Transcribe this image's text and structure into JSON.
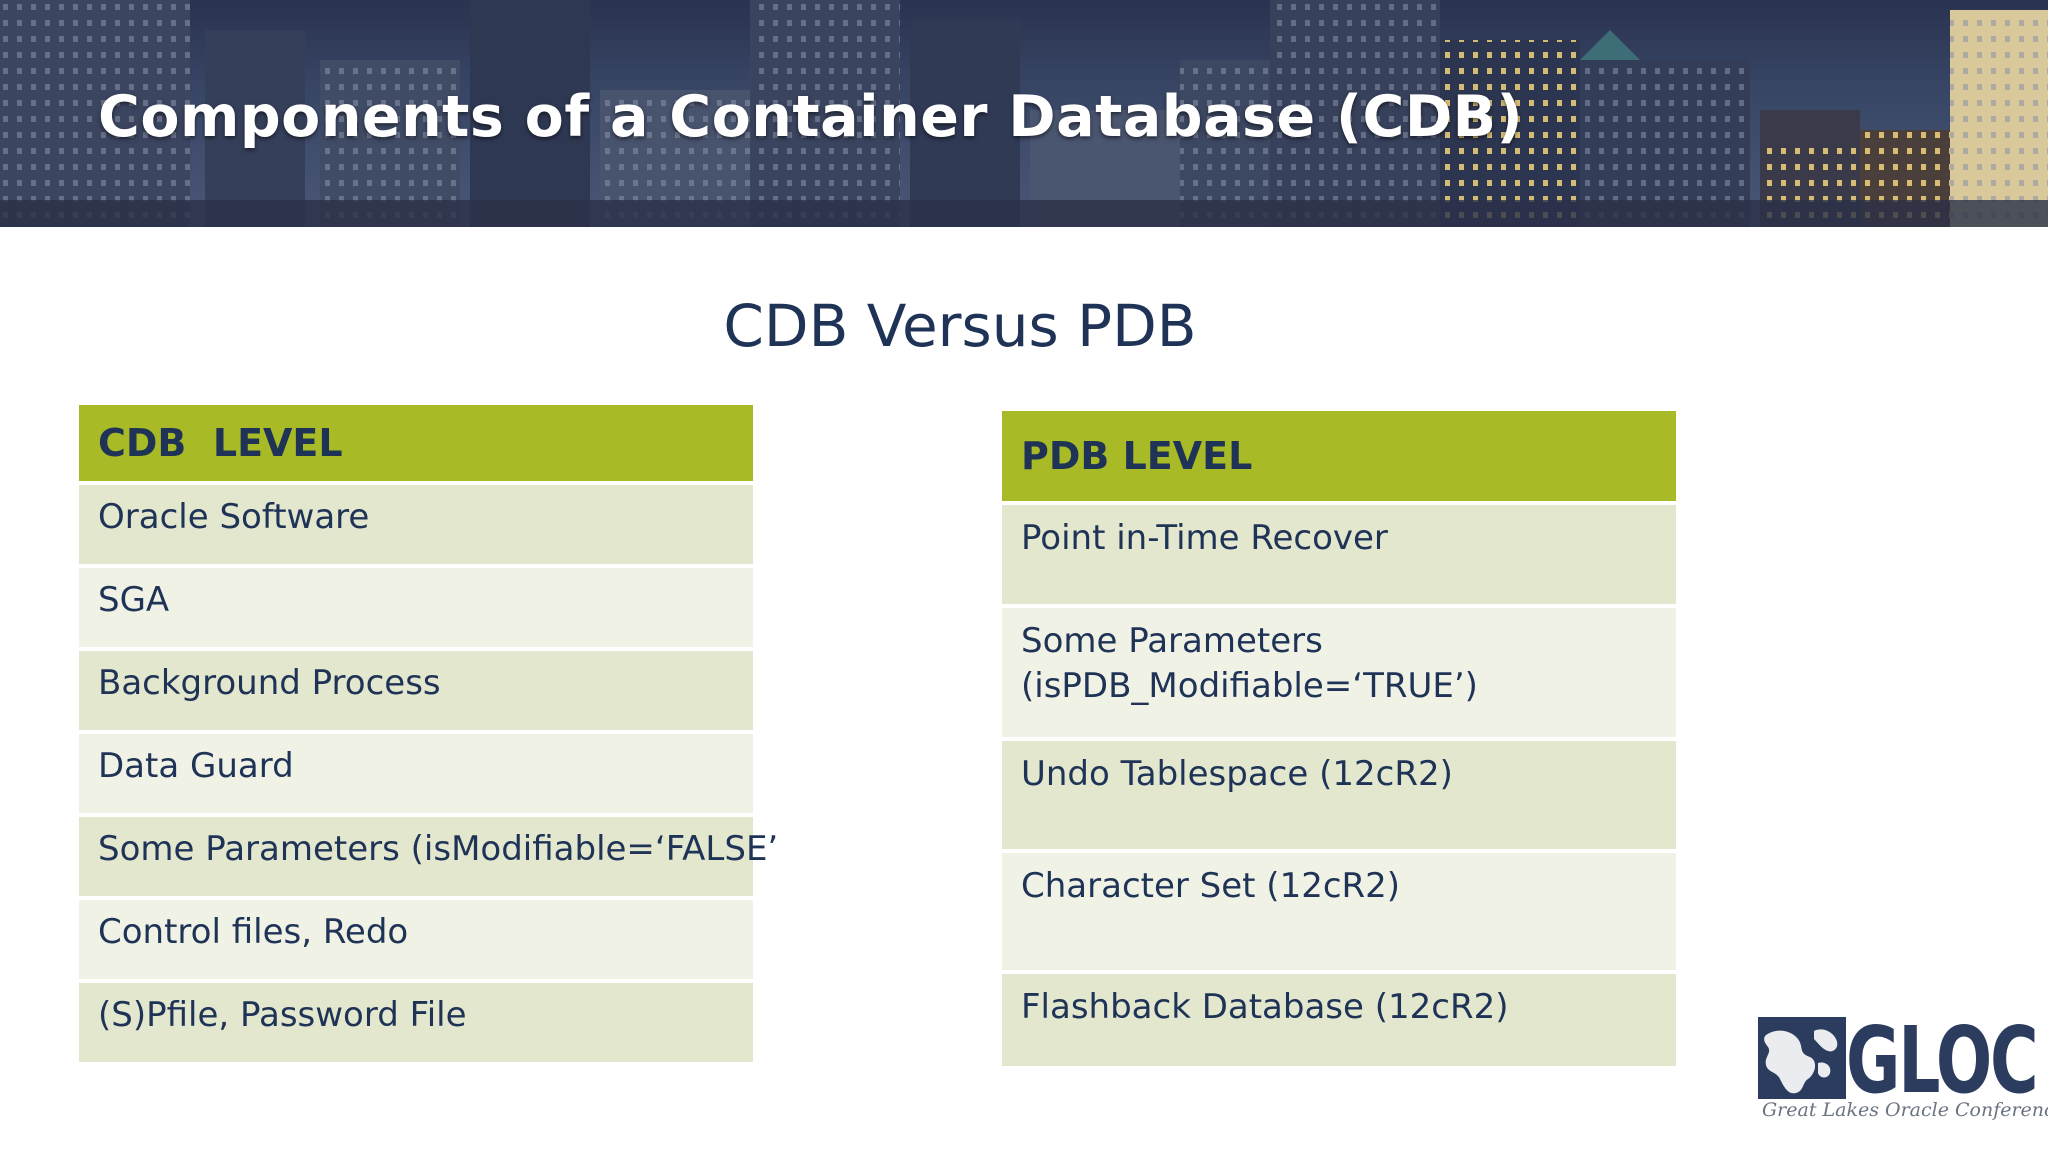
{
  "banner": {
    "title": "Components of a Container Database (CDB)"
  },
  "subtitle": "CDB Versus PDB",
  "colors": {
    "header_green": "#a8bb26",
    "row_dark": "#e2e7ce",
    "row_light": "#f0f2e6",
    "text_navy": "#1f3356"
  },
  "cdb_table": {
    "header": "CDB  LEVEL",
    "rows": [
      "Oracle Software",
      "SGA",
      "Background Process",
      "Data Guard",
      "Some Parameters (isModifiable=‘FALSE’",
      "Control files, Redo",
      "(S)Pfile, Password File"
    ]
  },
  "pdb_table": {
    "header": "PDB LEVEL",
    "rows": [
      {
        "line1": "Point in-Time Recover",
        "line2": ""
      },
      {
        "line1": "Some Parameters",
        "line2": "(isPDB_Modifiable=‘TRUE’)"
      },
      {
        "line1": "Undo Tablespace (12cR2)",
        "line2": ""
      },
      {
        "line1": "Character Set (12cR2)",
        "line2": ""
      },
      {
        "line1": "Flashback Database (12cR2)",
        "line2": ""
      }
    ]
  },
  "logo": {
    "icon": "great-lakes-map-icon",
    "wordmark": "GLOC",
    "tagline": "Great Lakes Oracle Conference"
  }
}
